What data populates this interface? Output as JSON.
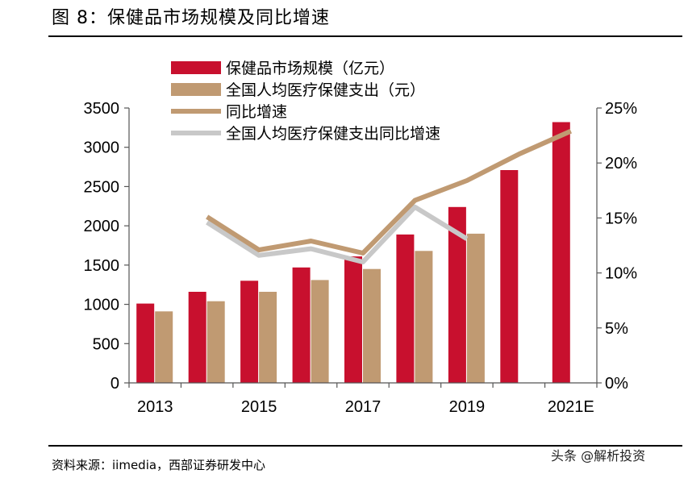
{
  "figure": {
    "title": "图 8：保健品市场规模及同比增速",
    "source": "资料来源：iimedia，西部证券研发中心",
    "watermark": "头条 @解析投资"
  },
  "chart_data": {
    "type": "bar",
    "x": [
      "2013",
      "2014",
      "2015",
      "2016",
      "2017",
      "2018",
      "2019",
      "2020",
      "2021E"
    ],
    "x_tick_labels": [
      "2013",
      "",
      "2015",
      "",
      "2017",
      "",
      "2019",
      "",
      "2021E"
    ],
    "series": [
      {
        "name": "保健品市场规模（亿元）",
        "type": "bar",
        "axis": "left",
        "color": "#c8102e",
        "values": [
          1010,
          1160,
          1300,
          1470,
          1610,
          1890,
          2240,
          2710,
          3320
        ]
      },
      {
        "name": "全国人均医疗保健支出（元）",
        "type": "bar",
        "axis": "left",
        "color": "#c09a72",
        "values": [
          910,
          1040,
          1160,
          1310,
          1450,
          1680,
          1900,
          null,
          null
        ]
      },
      {
        "name": "同比增速",
        "type": "line",
        "axis": "right",
        "color": "#c09a72",
        "values": [
          null,
          15.1,
          12.1,
          12.9,
          11.8,
          16.6,
          18.4,
          20.8,
          22.9
        ]
      },
      {
        "name": "全国人均医疗保健支出同比增速",
        "type": "line",
        "axis": "right",
        "color": "#c8c8c8",
        "values": [
          null,
          14.6,
          11.6,
          12.2,
          11.0,
          16.0,
          13.1,
          null,
          null
        ]
      }
    ],
    "y_left": {
      "ticks": [
        0,
        500,
        1000,
        1500,
        2000,
        2500,
        3000,
        3500
      ],
      "ylim": [
        0,
        3500
      ]
    },
    "y_right": {
      "ticks": [
        "0%",
        "5%",
        "10%",
        "15%",
        "20%",
        "25%"
      ],
      "ylim": [
        0,
        25
      ]
    },
    "legend_position": "top-left",
    "grid": false
  }
}
